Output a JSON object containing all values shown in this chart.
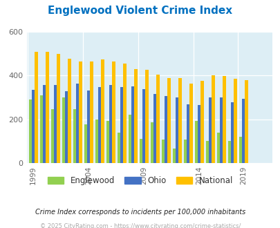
{
  "title": "Englewood Violent Crime Index",
  "title_color": "#0070c0",
  "background_color": "#ddeef5",
  "outer_bg": "#ffffff",
  "years": [
    1999,
    2000,
    2001,
    2002,
    2003,
    2004,
    2005,
    2006,
    2007,
    2008,
    2009,
    2010,
    2011,
    2012,
    2013,
    2014,
    2016,
    2017,
    2018,
    2019,
    2020,
    2021
  ],
  "englewood": [
    290,
    310,
    245,
    300,
    245,
    178,
    200,
    193,
    140,
    220,
    110,
    185,
    106,
    65,
    108,
    192,
    100,
    140,
    100,
    120,
    0,
    0
  ],
  "ohio": [
    335,
    357,
    357,
    330,
    362,
    333,
    348,
    356,
    348,
    350,
    337,
    316,
    307,
    300,
    270,
    265,
    300,
    301,
    278,
    295,
    0,
    0
  ],
  "national": [
    510,
    510,
    500,
    476,
    465,
    465,
    475,
    465,
    455,
    430,
    427,
    405,
    390,
    390,
    365,
    377,
    400,
    397,
    385,
    380,
    0,
    0
  ],
  "englewood_color": "#92d050",
  "ohio_color": "#4472c4",
  "national_color": "#ffc000",
  "ylabel_note": "Crime Index corresponds to incidents per 100,000 inhabitants",
  "footer": "© 2025 CityRating.com - https://www.cityrating.com/crime-statistics/",
  "ylim": [
    0,
    600
  ],
  "yticks": [
    0,
    200,
    400,
    600
  ],
  "legend_labels": [
    "Englewood",
    "Ohio",
    "National"
  ],
  "xtick_years": [
    1999,
    2004,
    2009,
    2014,
    2019
  ]
}
